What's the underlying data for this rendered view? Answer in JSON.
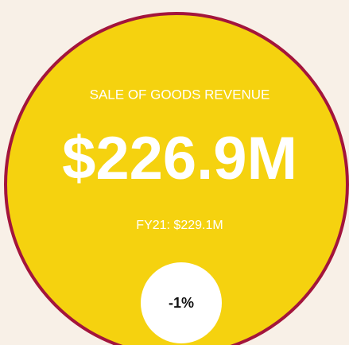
{
  "kpi": {
    "title": "SALE OF GOODS REVENUE",
    "value": "$226.9M",
    "comparison": "FY21: $229.1M",
    "change": "-1%"
  }
}
